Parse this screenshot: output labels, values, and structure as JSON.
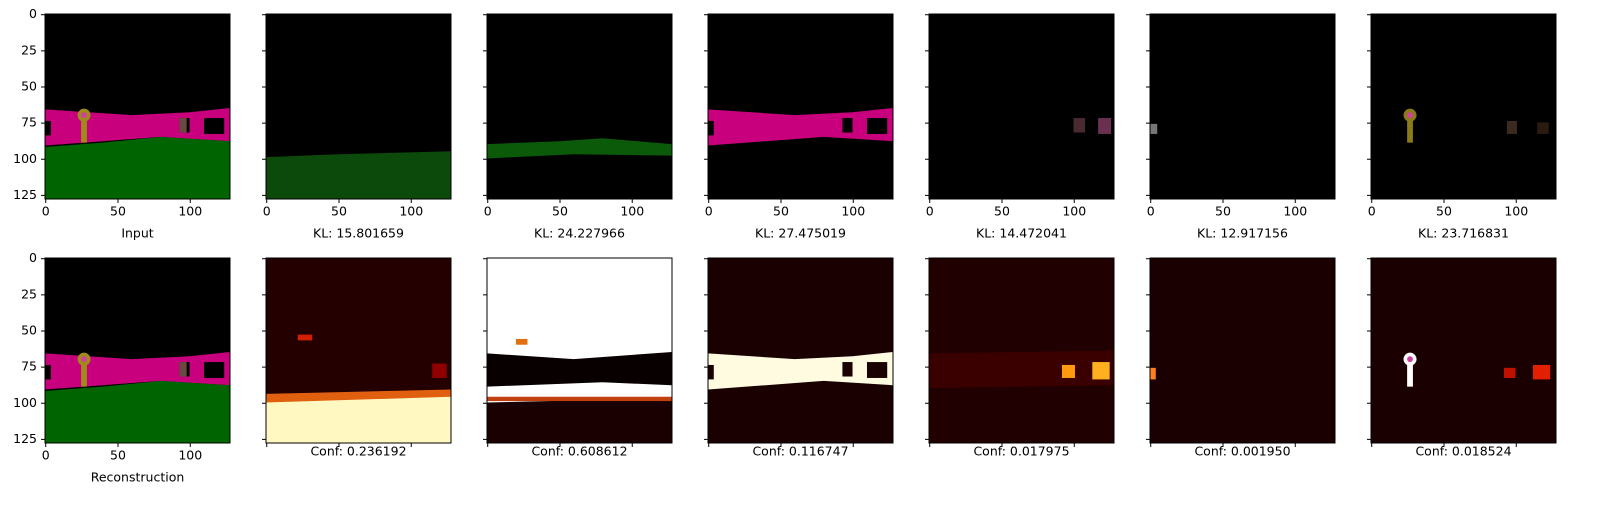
{
  "axis": {
    "xlim": [
      -0.5,
      127.5
    ],
    "ylim": [
      127.5,
      -0.5
    ],
    "xticks": [
      0,
      50,
      100
    ],
    "yticks": [
      0,
      25,
      50,
      75,
      100,
      125
    ]
  },
  "top_row": [
    {
      "label": "Input"
    },
    {
      "label": "KL: 15.801659"
    },
    {
      "label": "KL: 24.227966"
    },
    {
      "label": "KL: 27.475019"
    },
    {
      "label": "KL: 14.472041"
    },
    {
      "label": "KL: 12.917156"
    },
    {
      "label": "KL: 23.716831"
    }
  ],
  "bottom_row": [
    {
      "label": "Reconstruction"
    },
    {
      "label": "Conf: 0.236192"
    },
    {
      "label": "Conf: 0.608612"
    },
    {
      "label": "Conf: 0.116747"
    },
    {
      "label": "Conf: 0.017975"
    },
    {
      "label": "Conf: 0.001950"
    },
    {
      "label": "Conf: 0.018524"
    }
  ]
}
